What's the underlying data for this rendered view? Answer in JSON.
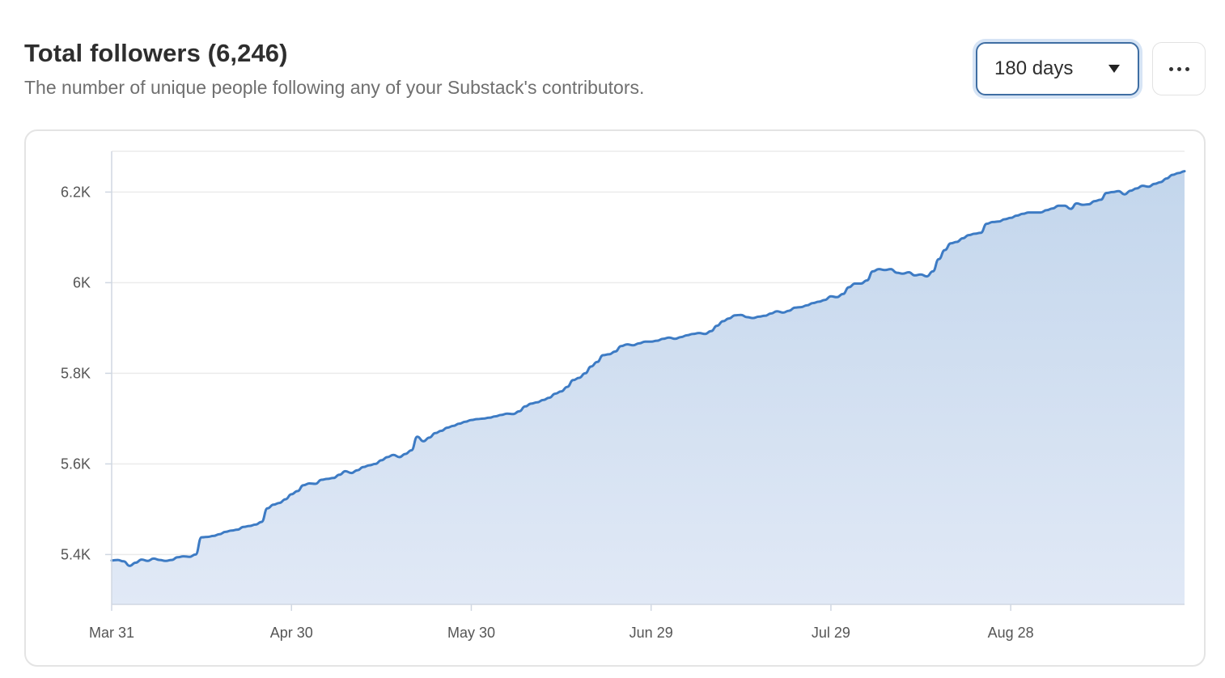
{
  "header": {
    "title": "Total followers (6,246)",
    "subtitle": "The number of unique people following any of your Substack's contributors."
  },
  "controls": {
    "range_label": "180 days",
    "more_icon": "ellipsis-icon"
  },
  "colors": {
    "line": "#3d7bc4",
    "area_top": "#c3d6ec",
    "area_bottom": "#e1e9f6",
    "grid": "#ebebeb",
    "axis": "#d0d7e2"
  },
  "chart_data": {
    "type": "area",
    "title": "Total followers (6,246)",
    "xlabel": "",
    "ylabel": "",
    "x_ticks": [
      "Mar 31",
      "Apr 30",
      "May 30",
      "Jun 29",
      "Jul 29",
      "Aug 28"
    ],
    "x_tick_days": [
      0,
      30,
      60,
      90,
      120,
      150
    ],
    "x_range_days": [
      0,
      179
    ],
    "ylim": [
      5290,
      6290
    ],
    "y_ticks": [
      5400,
      5600,
      5800,
      6000,
      6200
    ],
    "y_tick_labels": [
      "5.4K",
      "5.6K",
      "5.8K",
      "6K",
      "6.2K"
    ],
    "grid": true,
    "legend": "none",
    "series": [
      {
        "points": [
          [
            0,
            5387
          ],
          [
            1,
            5388
          ],
          [
            2,
            5385
          ],
          [
            3,
            5375
          ],
          [
            4,
            5382
          ],
          [
            5,
            5389
          ],
          [
            6,
            5386
          ],
          [
            7,
            5391
          ],
          [
            8,
            5388
          ],
          [
            9,
            5386
          ],
          [
            10,
            5388
          ],
          [
            11,
            5394
          ],
          [
            12,
            5396
          ],
          [
            13,
            5395
          ],
          [
            14,
            5400
          ],
          [
            15,
            5438
          ],
          [
            16,
            5439
          ],
          [
            17,
            5441
          ],
          [
            18,
            5445
          ],
          [
            19,
            5450
          ],
          [
            20,
            5453
          ],
          [
            21,
            5455
          ],
          [
            22,
            5461
          ],
          [
            23,
            5463
          ],
          [
            24,
            5466
          ],
          [
            25,
            5472
          ],
          [
            26,
            5502
          ],
          [
            27,
            5510
          ],
          [
            28,
            5514
          ],
          [
            29,
            5522
          ],
          [
            30,
            5533
          ],
          [
            31,
            5540
          ],
          [
            32,
            5553
          ],
          [
            33,
            5557
          ],
          [
            34,
            5556
          ],
          [
            35,
            5565
          ],
          [
            36,
            5567
          ],
          [
            37,
            5569
          ],
          [
            38,
            5576
          ],
          [
            39,
            5584
          ],
          [
            40,
            5580
          ],
          [
            41,
            5586
          ],
          [
            42,
            5593
          ],
          [
            43,
            5597
          ],
          [
            44,
            5600
          ],
          [
            45,
            5608
          ],
          [
            46,
            5615
          ],
          [
            47,
            5620
          ],
          [
            48,
            5615
          ],
          [
            49,
            5622
          ],
          [
            50,
            5630
          ],
          [
            51,
            5660
          ],
          [
            52,
            5650
          ],
          [
            53,
            5658
          ],
          [
            54,
            5668
          ],
          [
            55,
            5673
          ],
          [
            56,
            5680
          ],
          [
            57,
            5684
          ],
          [
            58,
            5689
          ],
          [
            59,
            5693
          ],
          [
            60,
            5697
          ],
          [
            61,
            5699
          ],
          [
            62,
            5700
          ],
          [
            63,
            5702
          ],
          [
            64,
            5705
          ],
          [
            65,
            5708
          ],
          [
            66,
            5711
          ],
          [
            67,
            5710
          ],
          [
            68,
            5716
          ],
          [
            69,
            5727
          ],
          [
            70,
            5733
          ],
          [
            71,
            5736
          ],
          [
            72,
            5741
          ],
          [
            73,
            5746
          ],
          [
            74,
            5755
          ],
          [
            75,
            5760
          ],
          [
            76,
            5770
          ],
          [
            77,
            5785
          ],
          [
            78,
            5790
          ],
          [
            79,
            5800
          ],
          [
            80,
            5815
          ],
          [
            81,
            5825
          ],
          [
            82,
            5840
          ],
          [
            83,
            5842
          ],
          [
            84,
            5848
          ],
          [
            85,
            5860
          ],
          [
            86,
            5864
          ],
          [
            87,
            5862
          ],
          [
            88,
            5866
          ],
          [
            89,
            5870
          ],
          [
            90,
            5870
          ],
          [
            91,
            5872
          ],
          [
            92,
            5876
          ],
          [
            93,
            5879
          ],
          [
            94,
            5876
          ],
          [
            95,
            5880
          ],
          [
            96,
            5884
          ],
          [
            97,
            5887
          ],
          [
            98,
            5889
          ],
          [
            99,
            5887
          ],
          [
            100,
            5893
          ],
          [
            101,
            5905
          ],
          [
            102,
            5915
          ],
          [
            103,
            5921
          ],
          [
            104,
            5928
          ],
          [
            105,
            5929
          ],
          [
            106,
            5924
          ],
          [
            107,
            5922
          ],
          [
            108,
            5925
          ],
          [
            109,
            5927
          ],
          [
            110,
            5932
          ],
          [
            111,
            5937
          ],
          [
            112,
            5934
          ],
          [
            113,
            5938
          ],
          [
            114,
            5945
          ],
          [
            115,
            5946
          ],
          [
            116,
            5950
          ],
          [
            117,
            5955
          ],
          [
            118,
            5958
          ],
          [
            119,
            5962
          ],
          [
            120,
            5970
          ],
          [
            121,
            5968
          ],
          [
            122,
            5975
          ],
          [
            123,
            5990
          ],
          [
            124,
            5998
          ],
          [
            125,
            5998
          ],
          [
            126,
            6005
          ],
          [
            127,
            6025
          ],
          [
            128,
            6030
          ],
          [
            129,
            6028
          ],
          [
            130,
            6030
          ],
          [
            131,
            6022
          ],
          [
            132,
            6020
          ],
          [
            133,
            6023
          ],
          [
            134,
            6016
          ],
          [
            135,
            6018
          ],
          [
            136,
            6014
          ],
          [
            137,
            6025
          ],
          [
            138,
            6052
          ],
          [
            139,
            6072
          ],
          [
            140,
            6087
          ],
          [
            141,
            6090
          ],
          [
            142,
            6098
          ],
          [
            143,
            6105
          ],
          [
            144,
            6108
          ],
          [
            145,
            6110
          ],
          [
            146,
            6130
          ],
          [
            147,
            6134
          ],
          [
            148,
            6135
          ],
          [
            149,
            6140
          ],
          [
            150,
            6143
          ],
          [
            151,
            6148
          ],
          [
            152,
            6152
          ],
          [
            153,
            6155
          ],
          [
            154,
            6155
          ],
          [
            155,
            6155
          ],
          [
            156,
            6160
          ],
          [
            157,
            6164
          ],
          [
            158,
            6170
          ],
          [
            159,
            6170
          ],
          [
            160,
            6163
          ],
          [
            161,
            6175
          ],
          [
            162,
            6172
          ],
          [
            163,
            6173
          ],
          [
            164,
            6180
          ],
          [
            165,
            6183
          ],
          [
            166,
            6198
          ],
          [
            167,
            6200
          ],
          [
            168,
            6202
          ],
          [
            169,
            6195
          ],
          [
            170,
            6203
          ],
          [
            171,
            6208
          ],
          [
            172,
            6214
          ],
          [
            173,
            6212
          ],
          [
            174,
            6218
          ],
          [
            175,
            6222
          ],
          [
            176,
            6230
          ],
          [
            177,
            6238
          ],
          [
            178,
            6242
          ],
          [
            179,
            6246
          ]
        ]
      }
    ]
  }
}
